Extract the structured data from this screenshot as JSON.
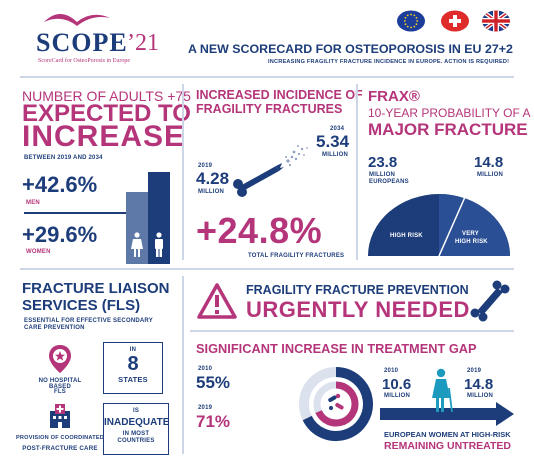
{
  "header": {
    "logo_main": "SCOPE",
    "logo_year": "’21",
    "logo_tagline": "ScoreCard for OsteoPorosis in Europe",
    "title": "A NEW SCORECARD FOR OSTEOPOROSIS IN EU 27+2",
    "subtitle": "INCREASING FRAGILITY FRACTURE INCIDENCE IN EUROPE. ACTION IS REQUIRED!",
    "flags": [
      "eu-flag",
      "swiss-flag",
      "uk-flag"
    ]
  },
  "adults": {
    "line1": "NUMBER OF ADULTS +75",
    "line2": "EXPECTED TO",
    "line3": "INCREASE",
    "period": "BETWEEN 2019 AND 2034",
    "men_value": "+42.6%",
    "men_label": "MEN",
    "women_value": "+29.6%",
    "women_label": "WOMEN"
  },
  "incidence": {
    "title_line1": "INCREASED INCIDENCE OF",
    "title_line2": "FRAGILITY FRACTURES",
    "year_start": "2019",
    "value_start": "4.28",
    "unit_start": "MILLION",
    "year_end": "2034",
    "value_end": "5.34",
    "unit_end": "MILLION",
    "increase": "+24.8%",
    "caption": "TOTAL FRAGILITY FRACTURES"
  },
  "frax": {
    "title": "FRAX®",
    "line1": "10-YEAR PROBABILITY OF A",
    "line2": "MAJOR FRACTURE",
    "high_value": "23.8",
    "high_unit": "MILLION",
    "high_unit2": "EUROPEANS",
    "very_high_value": "14.8",
    "very_high_unit": "MILLION",
    "label_high": "HIGH RISK",
    "label_very_high_1": "VERY",
    "label_very_high_2": "HIGH RISK"
  },
  "fls": {
    "title_line1": "FRACTURE LIAISON",
    "title_line2": "SERVICES (FLS)",
    "sub_line1": "ESSENTIAL FOR EFFECTIVE SECONDARY",
    "sub_line2": "CARE PREVENTION",
    "no_hospital_1": "NO HOSPITAL BASED",
    "no_hospital_2": "FLS",
    "box1_in": "IN",
    "box1_value": "8",
    "box1_label": "STATES",
    "provision_1": "PROVISION OF COORDINATED",
    "provision_2": "POST-FRACTURE CARE",
    "box2_is": "IS",
    "box2_value": "INADEQUATE",
    "box2_label_1": "IN MOST",
    "box2_label_2": "COUNTRIES"
  },
  "prevention": {
    "line1": "FRAGILITY FRACTURE PREVENTION",
    "line2": "URGENTLY NEEDED"
  },
  "gap": {
    "title": "SIGNIFICANT INCREASE IN TREATMENT GAP",
    "y2010": "2010",
    "v2010": "55%",
    "y2019": "2019",
    "v2019": "71%",
    "w_year1": "2010",
    "w_value1": "10.6",
    "w_unit1": "MILLION",
    "w_year2": "2019",
    "w_value2": "14.8",
    "w_unit2": "MILLION",
    "caption1": "EUROPEAN WOMEN AT HIGH-RISK",
    "caption2": "REMAINING UNTREATED"
  }
}
